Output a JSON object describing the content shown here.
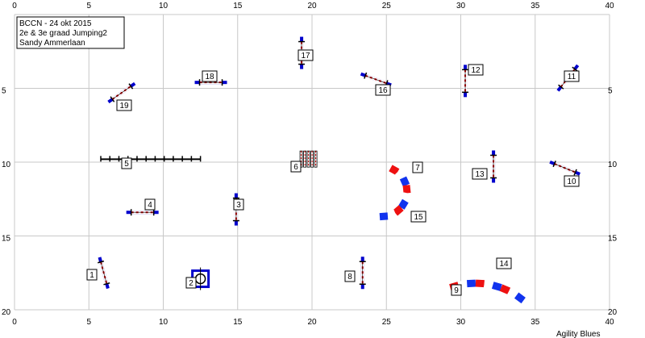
{
  "info": {
    "lines": [
      "BCCN - 24 okt 2015",
      "2e & 3e graad Jumping2",
      "Sandy Ammerlaan"
    ]
  },
  "footer": "Agility Blues",
  "axes": {
    "x_ticks": [
      "0",
      "5",
      "10",
      "15",
      "20",
      "25",
      "30",
      "35",
      "40"
    ],
    "y_ticks": [
      "0",
      "5",
      "10",
      "15",
      "20"
    ],
    "xlim": [
      0,
      40
    ],
    "ylim": [
      0,
      20
    ]
  },
  "colors": {
    "grid": "#c8c8c8",
    "bar": "#0000cc",
    "pole": "#cc0000",
    "tunnel_red": "#ee1111",
    "tunnel_blue": "#1133ee"
  },
  "obstacles": [
    {
      "num": "1",
      "type": "jump",
      "x": 6.0,
      "y": 17.5,
      "angle": 75
    },
    {
      "num": "2",
      "type": "tire",
      "x": 12.5,
      "y": 17.9
    },
    {
      "num": "3",
      "type": "jump",
      "x": 14.9,
      "y": 13.2,
      "angle": 90
    },
    {
      "num": "4",
      "type": "jump",
      "x": 8.6,
      "y": 13.4,
      "angle": 0
    },
    {
      "num": "5",
      "type": "weave",
      "x1": 5.8,
      "x2": 12.5,
      "y": 9.8,
      "count": 12
    },
    {
      "num": "6",
      "type": "wall",
      "x": 19.3,
      "y": 9.9
    },
    {
      "num": "7",
      "type": "tunnel",
      "cx": 24.7,
      "cy": 12.0,
      "r": 1.7,
      "a1": -70,
      "a2": 95
    },
    {
      "num": "8",
      "type": "jump",
      "x": 23.4,
      "y": 17.5,
      "angle": 90
    },
    {
      "num": "9",
      "type": "tunnel",
      "cx": 31.0,
      "cy": 23.2,
      "r": 5.0,
      "a1": -110,
      "a2": -50
    },
    {
      "num": "10",
      "type": "jump",
      "x": 37.0,
      "y": 10.4,
      "angle": 22
    },
    {
      "num": "11",
      "type": "jump",
      "x": 37.2,
      "y": 4.3,
      "angle": -52
    },
    {
      "num": "12",
      "type": "jump",
      "x": 30.3,
      "y": 4.5,
      "angle": 90
    },
    {
      "num": "13",
      "type": "jump",
      "x": 32.2,
      "y": 10.3,
      "angle": 90
    },
    {
      "num": "14",
      "type": "label",
      "x": 33.3,
      "y": 17.0
    },
    {
      "num": "15",
      "type": "label",
      "x": 24.5,
      "y": 13.6
    },
    {
      "num": "16",
      "type": "jump",
      "x": 24.3,
      "y": 4.4,
      "angle": 20
    },
    {
      "num": "17",
      "type": "jump",
      "x": 19.3,
      "y": 2.6,
      "angle": 90
    },
    {
      "num": "18",
      "type": "jump",
      "x": 13.2,
      "y": 4.6,
      "angle": 0
    },
    {
      "num": "19",
      "type": "jump",
      "x": 7.2,
      "y": 5.3,
      "angle": -35
    }
  ]
}
